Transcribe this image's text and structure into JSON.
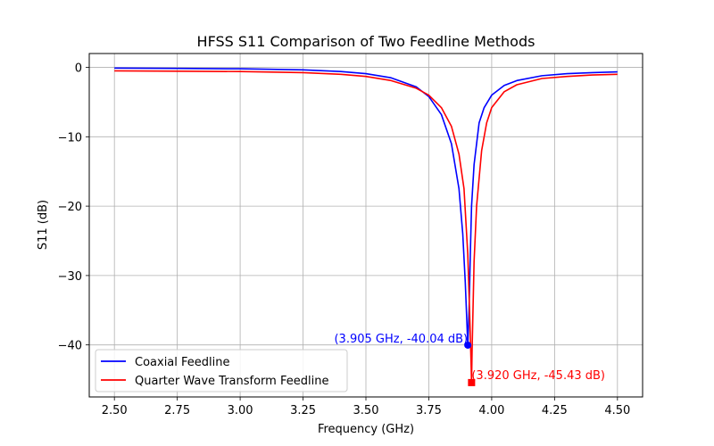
{
  "chart_data": {
    "type": "line",
    "title": "HFSS S11 Comparison of Two Feedline Methods",
    "xlabel": "Frequency (GHz)",
    "ylabel": "S11 (dB)",
    "xlim": [
      2.4,
      4.6
    ],
    "ylim": [
      -47.5,
      2.0
    ],
    "xticks": [
      2.5,
      2.75,
      3.0,
      3.25,
      3.5,
      3.75,
      4.0,
      4.25,
      4.5
    ],
    "xtick_labels": [
      "2.50",
      "2.75",
      "3.00",
      "3.25",
      "3.50",
      "3.75",
      "4.00",
      "4.25",
      "4.50"
    ],
    "yticks": [
      0,
      -10,
      -20,
      -30,
      -40
    ],
    "ytick_labels": [
      "0",
      "−10",
      "−20",
      "−30",
      "−40"
    ],
    "grid": true,
    "legend_position": "lower-left",
    "series": [
      {
        "name": "Coaxial Feedline",
        "color": "#0000ff",
        "x": [
          2.5,
          2.75,
          3.0,
          3.25,
          3.4,
          3.5,
          3.6,
          3.7,
          3.75,
          3.8,
          3.84,
          3.87,
          3.885,
          3.895,
          3.9,
          3.905,
          3.91,
          3.915,
          3.92,
          3.93,
          3.95,
          3.97,
          4.0,
          4.05,
          4.1,
          4.2,
          4.3,
          4.4,
          4.5
        ],
        "y": [
          -0.1,
          -0.15,
          -0.2,
          -0.35,
          -0.6,
          -0.9,
          -1.5,
          -2.8,
          -4.2,
          -6.8,
          -11.0,
          -17.5,
          -24.0,
          -31.0,
          -35.5,
          -40.04,
          -35.0,
          -27.0,
          -20.0,
          -14.0,
          -8.0,
          -5.8,
          -4.0,
          -2.6,
          -1.9,
          -1.2,
          -0.9,
          -0.75,
          -0.65
        ],
        "marker": {
          "x": 3.905,
          "y": -40.04,
          "shape": "circle"
        },
        "annotation": "(3.905 GHz, -40.04 dB)"
      },
      {
        "name": "Quarter Wave Transform Feedline",
        "color": "#ff0000",
        "x": [
          2.5,
          2.75,
          3.0,
          3.25,
          3.4,
          3.5,
          3.6,
          3.7,
          3.75,
          3.8,
          3.84,
          3.87,
          3.89,
          3.905,
          3.912,
          3.918,
          3.92,
          3.922,
          3.93,
          3.94,
          3.96,
          3.98,
          4.0,
          4.05,
          4.1,
          4.2,
          4.3,
          4.4,
          4.5
        ],
        "y": [
          -0.5,
          -0.55,
          -0.6,
          -0.75,
          -1.0,
          -1.3,
          -1.9,
          -3.0,
          -4.0,
          -5.8,
          -8.5,
          -12.5,
          -17.5,
          -27.0,
          -35.0,
          -42.5,
          -45.43,
          -41.0,
          -28.0,
          -20.0,
          -12.0,
          -8.0,
          -5.8,
          -3.5,
          -2.5,
          -1.6,
          -1.3,
          -1.1,
          -1.0
        ],
        "marker": {
          "x": 3.92,
          "y": -45.43,
          "shape": "square"
        },
        "annotation": "(3.920 GHz, -45.43 dB)"
      }
    ]
  }
}
